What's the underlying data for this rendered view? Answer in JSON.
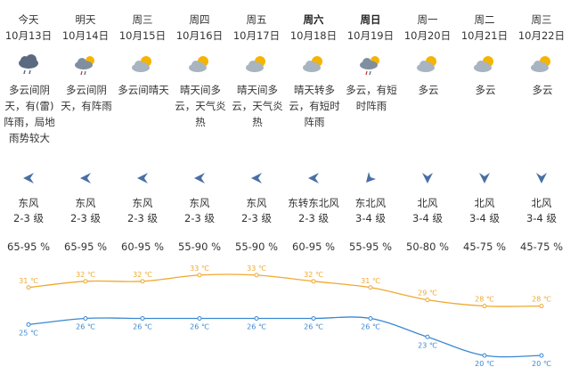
{
  "days": [
    {
      "day": "今天",
      "bold": false,
      "date": "10月13日",
      "icon": "cloud-rain-icon",
      "desc": "多云间阴天，有(雷)阵雨，局地雨势较大",
      "wind_dir": "东风",
      "wind_level": "2-3 级",
      "humidity": "65-95 %",
      "wind_arrow": "left"
    },
    {
      "day": "明天",
      "bold": false,
      "date": "10月14日",
      "icon": "cloud-sun-rain-icon",
      "desc": "多云间阴天，有阵雨",
      "wind_dir": "东风",
      "wind_level": "2-3 级",
      "humidity": "65-95 %",
      "wind_arrow": "left"
    },
    {
      "day": "周三",
      "bold": false,
      "date": "10月15日",
      "icon": "sun-cloud-icon",
      "desc": "多云间晴天",
      "wind_dir": "东风",
      "wind_level": "2-3 级",
      "humidity": "60-95 %",
      "wind_arrow": "left"
    },
    {
      "day": "周四",
      "bold": false,
      "date": "10月16日",
      "icon": "sun-cloud-icon",
      "desc": "晴天间多云，天气炎热",
      "wind_dir": "东风",
      "wind_level": "2-3 级",
      "humidity": "55-90 %",
      "wind_arrow": "left"
    },
    {
      "day": "周五",
      "bold": false,
      "date": "10月17日",
      "icon": "sun-cloud-icon",
      "desc": "晴天间多云，天气炎热",
      "wind_dir": "东风",
      "wind_level": "2-3 级",
      "humidity": "55-90 %",
      "wind_arrow": "left"
    },
    {
      "day": "周六",
      "bold": true,
      "date": "10月18日",
      "icon": "sun-cloud-icon",
      "desc": "晴天转多云，有短时阵雨",
      "wind_dir": "东转东北风",
      "wind_level": "2-3 级",
      "humidity": "60-95 %",
      "wind_arrow": "left"
    },
    {
      "day": "周日",
      "bold": true,
      "date": "10月19日",
      "icon": "cloud-sun-rain-icon",
      "desc": "多云，有短时阵雨",
      "wind_dir": "东北风",
      "wind_level": "3-4 级",
      "humidity": "55-95 %",
      "wind_arrow": "down-left"
    },
    {
      "day": "周一",
      "bold": false,
      "date": "10月20日",
      "icon": "sun-cloud-icon",
      "desc": "多云",
      "wind_dir": "北风",
      "wind_level": "3-4 级",
      "humidity": "50-80 %",
      "wind_arrow": "down"
    },
    {
      "day": "周二",
      "bold": false,
      "date": "10月21日",
      "icon": "sun-cloud-icon",
      "desc": "多云",
      "wind_dir": "北风",
      "wind_level": "3-4 级",
      "humidity": "45-75 %",
      "wind_arrow": "down"
    },
    {
      "day": "周三",
      "bold": false,
      "date": "10月22日",
      "icon": "sun-cloud-icon",
      "desc": "多云",
      "wind_dir": "北风",
      "wind_level": "3-4 级",
      "humidity": "45-75 %",
      "wind_arrow": "down"
    }
  ],
  "chart_data": {
    "type": "line",
    "categories": [
      "10月13日",
      "10月14日",
      "10月15日",
      "10月16日",
      "10月17日",
      "10月18日",
      "10月19日",
      "10月20日",
      "10月21日",
      "10月22日"
    ],
    "series": [
      {
        "values": [
          31,
          32,
          32,
          33,
          33,
          32,
          31,
          29,
          28,
          28
        ],
        "labels": [
          "31 ℃",
          "32 ℃",
          "32 ℃",
          "33 ℃",
          "33 ℃",
          "32 ℃",
          "31 ℃",
          "29 ℃",
          "28 ℃",
          "28 ℃"
        ],
        "color": "#f0a830"
      },
      {
        "values": [
          25,
          26,
          26,
          26,
          26,
          26,
          26,
          23,
          20,
          20
        ],
        "labels": [
          "25 ℃",
          "26 ℃",
          "26 ℃",
          "26 ℃",
          "26 ℃",
          "26 ℃",
          "26 ℃",
          "23 ℃",
          "20 ℃",
          "20 ℃"
        ],
        "color": "#3a88d0"
      }
    ],
    "ylim": [
      18,
      35
    ]
  },
  "colors": {
    "high": "#f0a830",
    "low": "#3a88d0",
    "wind_arrow": "#4a6fa5",
    "cloud": "#7f8fa0",
    "sun": "#f5b400"
  }
}
